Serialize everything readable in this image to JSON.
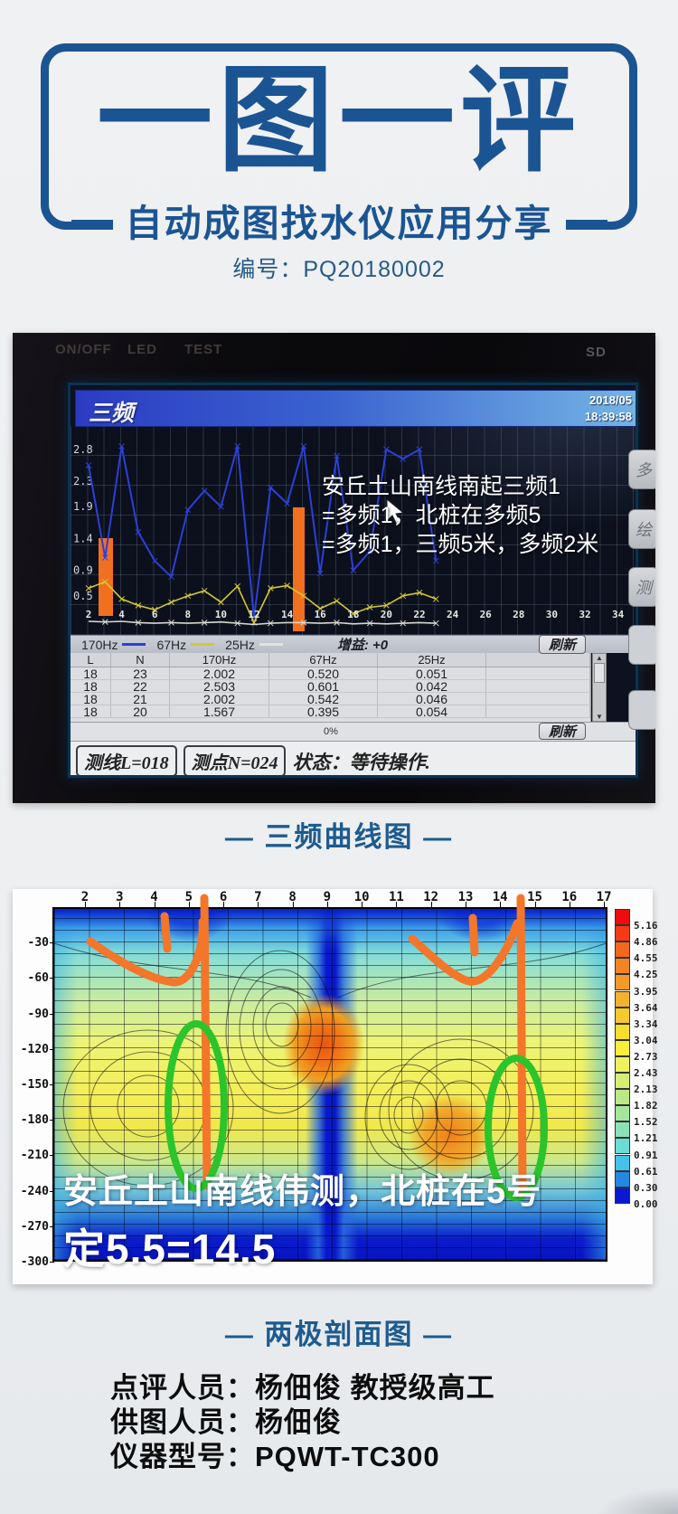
{
  "header": {
    "logo": "一图一评",
    "subtitle": "自动成图找水仪应用分享",
    "number": "编号：PQ20180002"
  },
  "captions": {
    "chart1": "— 三频曲线图 —",
    "chart2": "— 两极剖面图 —"
  },
  "device": {
    "bezel": {
      "power": "ON/OFF",
      "led": "LED",
      "test": "TEST",
      "sd": "SD"
    },
    "titlebar": {
      "title": "三频",
      "date": "2018/05",
      "time": "18:39:58"
    },
    "annotation_lines": [
      "安丘土山南线南起三频1",
      "=多频1，北桩在多频5",
      "=多频1，三频5米，多频2米"
    ],
    "legend": {
      "items": [
        "170Hz",
        "67Hz",
        "25Hz"
      ],
      "gain": "增益: +0"
    },
    "refresh_button": "刷新",
    "side_buttons": [
      "多",
      "绘",
      "测"
    ],
    "table": {
      "headers": [
        "L",
        "N",
        "170Hz",
        "67Hz",
        "25Hz"
      ],
      "rows": [
        [
          "18",
          "23",
          "2.002",
          "0.520",
          "0.051"
        ],
        [
          "18",
          "22",
          "2.503",
          "0.601",
          "0.042"
        ],
        [
          "18",
          "21",
          "2.002",
          "0.542",
          "0.046"
        ],
        [
          "18",
          "20",
          "1.567",
          "0.395",
          "0.054"
        ]
      ]
    },
    "progress": "0%",
    "status": {
      "line": "测线L=018",
      "point": "测点N=024",
      "state": "状态：等待操作."
    }
  },
  "profile": {
    "overlay_line1": "安丘土山南线伟测，北桩在5号",
    "overlay_line2": "定5.5=14.5"
  },
  "footer": {
    "lines": [
      "点评人员：杨佃俊 教授级高工",
      "供图人员：杨佃俊",
      "仪器型号：PQWT-TC300"
    ]
  },
  "colors": {
    "brand_blue": "#1b5493",
    "annotation_orange": "#f4762a",
    "annotation_green": "#2bc42b",
    "series_170hz": "#2d3fd8",
    "series_67hz": "#d4c830",
    "series_25hz": "#d8d8d0"
  },
  "chart_data": [
    {
      "type": "line",
      "title": "三频",
      "x_start": 2,
      "x_label_values": [
        2,
        4,
        6,
        8,
        10,
        12,
        14,
        16,
        18,
        20,
        22
      ],
      "x_extension_labels": [
        24,
        26,
        28,
        30,
        32,
        34
      ],
      "y_ticks": [
        2.8,
        2.3,
        1.9,
        1.4,
        0.9,
        0.5
      ],
      "gain_label": "增益: +0",
      "series": [
        {
          "name": "170Hz",
          "color": "#2d3fd8",
          "values": [
            2.55,
            1.1,
            2.85,
            1.5,
            1.05,
            0.8,
            1.85,
            2.15,
            1.9,
            2.85,
            0.15,
            2.2,
            1.95,
            2.85,
            0.85,
            2.7,
            0.9,
            1.2,
            2.8,
            2.65,
            2.8,
            1.05
          ]
        },
        {
          "name": "67Hz",
          "color": "#d4c830",
          "values": [
            0.62,
            0.72,
            0.45,
            0.35,
            0.28,
            0.4,
            0.5,
            0.58,
            0.4,
            0.65,
            0.08,
            0.62,
            0.66,
            0.5,
            0.3,
            0.42,
            0.22,
            0.32,
            0.35,
            0.5,
            0.55,
            0.45
          ]
        },
        {
          "name": "25Hz",
          "color": "#d8d8d0",
          "values": [
            0.1,
            0.09,
            0.1,
            0.08,
            0.07,
            0.08,
            0.07,
            0.08,
            0.09,
            0.07,
            0.05,
            0.07,
            0.08,
            0.08,
            0.07,
            0.08,
            0.06,
            0.07,
            0.06,
            0.07,
            0.08,
            0.07
          ]
        }
      ]
    },
    {
      "type": "heatmap",
      "subtype": "contour-depth-profile",
      "x_ticks": [
        2,
        3,
        4,
        5,
        6,
        7,
        8,
        9,
        10,
        11,
        12,
        13,
        14,
        15,
        16,
        17
      ],
      "depth_ticks": [
        -30,
        -60,
        -90,
        -120,
        -150,
        -180,
        -210,
        -240,
        -270,
        -300
      ],
      "colorbar_levels": [
        "5.16",
        "4.86",
        "4.55",
        "4.25",
        "3.95",
        "3.64",
        "3.34",
        "3.04",
        "2.73",
        "2.43",
        "2.13",
        "1.82",
        "1.52",
        "1.21",
        "0.91",
        "0.61",
        "0.30",
        "0.00"
      ],
      "colorbar_colors": [
        "#ee0c0c",
        "#f43b14",
        "#f2681c",
        "#f28424",
        "#f29a28",
        "#f2b22c",
        "#f4ca2e",
        "#f6de30",
        "#f8ee3c",
        "#eef25c",
        "#d6ee74",
        "#bce886",
        "#a4e69c",
        "#8ce2b8",
        "#6cdcd4",
        "#46c2e8",
        "#2488e0",
        "#0a18d2"
      ]
    }
  ]
}
